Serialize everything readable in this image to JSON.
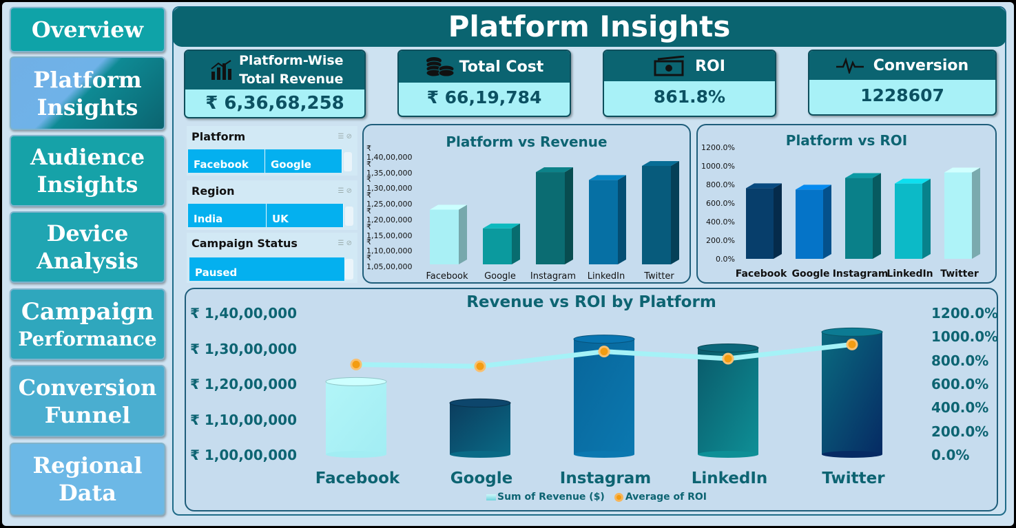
{
  "nav": {
    "overview": "Overview",
    "platform_insights": [
      "Platform",
      "Insights"
    ],
    "audience_insights": [
      "Audience",
      "Insights"
    ],
    "device_analysis": [
      "Device",
      "Analysis"
    ],
    "campaign_performance": [
      "Campaign",
      "Performance"
    ],
    "conversion_funnel": [
      "Conversion",
      "Funnel"
    ],
    "regional_data": [
      "Regional",
      "Data"
    ]
  },
  "page_title": "Platform Insights",
  "kpis": {
    "revenue": {
      "label_line1": "Platform-Wise",
      "label_line2": "Total Revenue",
      "value": "₹ 6,36,68,258",
      "icon": "bar-chart-icon"
    },
    "cost": {
      "label": "Total Cost",
      "value": "₹ 66,19,784",
      "icon": "coins-icon"
    },
    "roi": {
      "label": "ROI",
      "value": "861.8%",
      "icon": "cash-icon"
    },
    "conversion": {
      "label": "Conversion",
      "value": "1228607",
      "icon": "pulse-icon"
    }
  },
  "slicers": {
    "platform": {
      "title": "Platform",
      "items": [
        "Facebook",
        "Google"
      ]
    },
    "region": {
      "title": "Region",
      "items": [
        "India",
        "UK"
      ]
    },
    "campaign_status": {
      "title": "Campaign Status",
      "items": [
        "Paused"
      ]
    }
  },
  "colors": {
    "teal_dark": "#0a6470",
    "chip_blue": "#04b0ef",
    "roi_line": "#a5f2f7",
    "roi_marker": "#f39c12"
  },
  "chart_data": [
    {
      "type": "bar",
      "title": "Platform vs Revenue",
      "categories": [
        "Facebook",
        "Google",
        "Instagram",
        "LinkedIn",
        "Twitter"
      ],
      "values": [
        12050000,
        11450000,
        13250000,
        13000000,
        13450000
      ],
      "yticks": [
        "₹ 1,40,00,000",
        "₹ 1,35,00,000",
        "₹ 1,30,00,000",
        "₹ 1,25,00,000",
        "₹ 1,20,00,000",
        "₹ 1,15,00,000",
        "₹ 1,10,00,000",
        "₹ 1,05,00,000"
      ],
      "ylim": [
        10300000,
        14000000
      ],
      "colors": [
        "#a9f0f5",
        "#0b9a9e",
        "#0b6c72",
        "#0670a4",
        "#075b7c"
      ]
    },
    {
      "type": "bar",
      "title": "Platform vs ROI",
      "categories": [
        "Facebook",
        "Google",
        "Instagram",
        "LinkedIn",
        "Twitter"
      ],
      "values": [
        760,
        745,
        870,
        810,
        930
      ],
      "yticks": [
        "1200.0%",
        "1000.0%",
        "800.0%",
        "600.0%",
        "400.0%",
        "200.0%",
        "0.0%"
      ],
      "ylim": [
        0,
        1200
      ],
      "colors": [
        "#073e6b",
        "#0574c8",
        "#0a8089",
        "#0cbac7",
        "#aef3f8"
      ]
    },
    {
      "type": "bar+line",
      "title": "Revenue vs ROI by Platform",
      "categories": [
        "Facebook",
        "Google",
        "Instagram",
        "LinkedIn",
        "Twitter"
      ],
      "series": [
        {
          "name": "Sum of Revenue ($)",
          "values": [
            12050000,
            11450000,
            13250000,
            13000000,
            13450000
          ]
        },
        {
          "name": "Average of ROI",
          "values": [
            760,
            745,
            870,
            810,
            930
          ]
        }
      ],
      "y_left_ticks": [
        "₹ 1,40,00,000",
        "₹ 1,30,00,000",
        "₹ 1,20,00,000",
        "₹ 1,10,00,000",
        "₹ 1,00,00,000"
      ],
      "y_right_ticks": [
        "1200.0%",
        "1000.0%",
        "800.0%",
        "600.0%",
        "400.0%",
        "200.0%",
        "0.0%"
      ],
      "ylim_left": [
        10000000,
        14000000
      ],
      "ylim_right": [
        0,
        1200
      ]
    }
  ]
}
